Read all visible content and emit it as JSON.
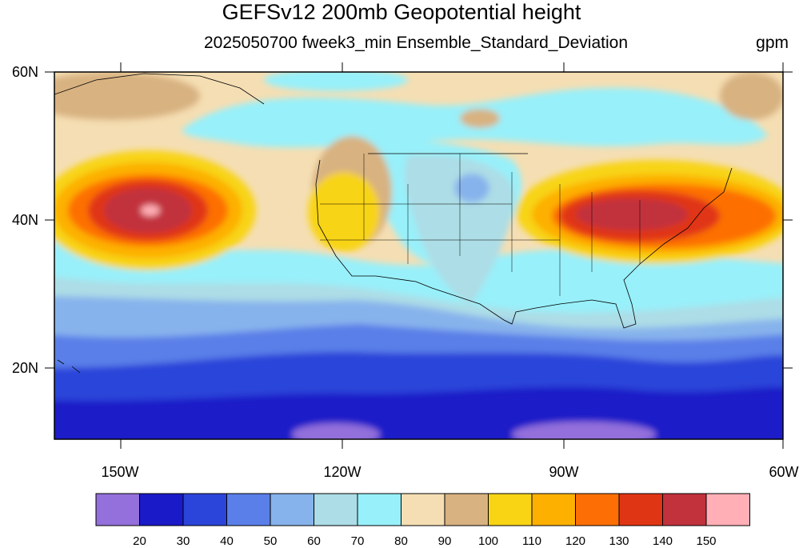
{
  "title": "GEFSv12 200mb Geopotential height",
  "subtitle": "2025050700 fweek3_min Ensemble_Standard_Deviation",
  "units": "gpm",
  "lat_labels": [
    "60N",
    "40N",
    "20N"
  ],
  "lon_labels": [
    "150W",
    "120W",
    "90W",
    "60W"
  ],
  "colorbar": {
    "labels": [
      "20",
      "30",
      "40",
      "50",
      "60",
      "70",
      "80",
      "90",
      "100",
      "110",
      "120",
      "130",
      "140",
      "150"
    ],
    "colors": [
      "#9370db",
      "#1a1ac8",
      "#2b44d9",
      "#5a7fe8",
      "#87b3ec",
      "#addde6",
      "#98f0fa",
      "#f5deb3",
      "#d8b281",
      "#f8d415",
      "#fdb000",
      "#fd6f05",
      "#e03515",
      "#c1323c",
      "#ffafb5"
    ]
  },
  "chart_data": {
    "type": "heatmap",
    "title": "GEFSv12 200mb Geopotential height",
    "subtitle": "2025050700 fweek3_min Ensemble_Standard_Deviation",
    "units": "gpm",
    "lon_range": [
      -160,
      -60
    ],
    "lat_range": [
      10,
      60
    ],
    "levels": [
      20,
      30,
      40,
      50,
      60,
      70,
      80,
      90,
      100,
      110,
      120,
      130,
      140,
      150
    ],
    "features": [
      {
        "name": "Pacific maximum",
        "lon": -145,
        "lat": 41,
        "value": 150
      },
      {
        "name": "Eastern US maximum",
        "lon": -80,
        "lat": 40.5,
        "value": 140
      },
      {
        "name": "Tropical minimum",
        "lat": 12,
        "value": 20
      }
    ]
  }
}
